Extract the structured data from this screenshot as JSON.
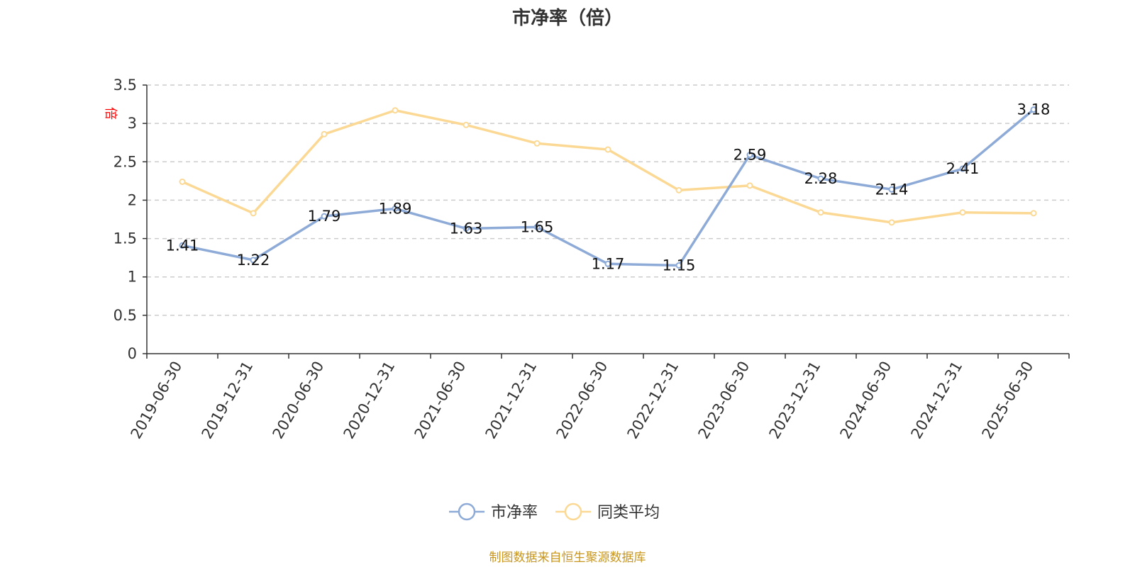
{
  "chart_data": {
    "type": "line",
    "title": "市净率（倍）",
    "unit": "倍",
    "categories": [
      "2019-06-30",
      "2019-12-31",
      "2020-06-30",
      "2020-12-31",
      "2021-06-30",
      "2021-12-31",
      "2022-06-30",
      "2022-12-31",
      "2023-06-30",
      "2023-12-31",
      "2024-06-30",
      "2024-12-31",
      "2025-06-30"
    ],
    "series": [
      {
        "name": "市净率",
        "color": "#8eabd8",
        "values": [
          1.41,
          1.22,
          1.79,
          1.89,
          1.63,
          1.65,
          1.17,
          1.15,
          2.59,
          2.28,
          2.14,
          2.41,
          3.18
        ],
        "labels": [
          "1.41",
          "1.22",
          "1.79",
          "1.89",
          "1.63",
          "1.65",
          "1.17",
          "1.15",
          "2.59",
          "2.28",
          "2.14",
          "2.41",
          "3.18"
        ]
      },
      {
        "name": "同类平均",
        "color": "#fbd995",
        "values": [
          2.24,
          1.83,
          2.86,
          3.17,
          2.98,
          2.74,
          2.66,
          2.13,
          2.19,
          1.84,
          1.71,
          1.84,
          1.83
        ]
      }
    ],
    "ylim": [
      0,
      3.5
    ],
    "yticks": [
      "0",
      "0.5",
      "1",
      "1.5",
      "2",
      "2.5",
      "3",
      "3.5"
    ],
    "grid": true,
    "legend_position": "bottom-center"
  },
  "source_note": "制图数据来自恒生聚源数据库"
}
